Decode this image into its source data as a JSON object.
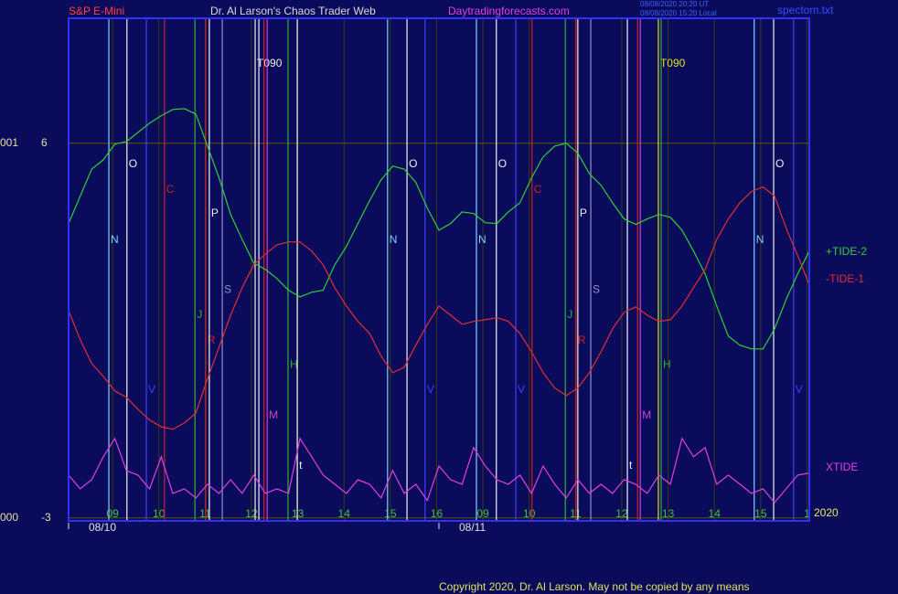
{
  "chart_data": {
    "type": "line",
    "title": "Dr. Al Larson's Chaos Trader Web",
    "instrument": "S&P E-Mini",
    "site": "Daytradingforecasts.com",
    "timestamps": [
      "08/08/2020 20:20 UT",
      "08/08/2020 15:20 Local"
    ],
    "file": "spectom.txt",
    "year": "2020",
    "copyright": "Copyright 2020, Dr. Al Larson. May not be copied by any means",
    "xlim": [
      0,
      16
    ],
    "ylim": [
      -3.07,
      9.0
    ],
    "yticks": [
      6,
      -3
    ],
    "ytick_prefixes": [
      "001",
      "000"
    ],
    "grid": true,
    "xticks": [
      {
        "value": 0.95,
        "label": "09"
      },
      {
        "value": 1.95,
        "label": "10"
      },
      {
        "value": 2.95,
        "label": "11"
      },
      {
        "value": 3.95,
        "label": "12"
      },
      {
        "value": 4.95,
        "label": "13"
      },
      {
        "value": 5.95,
        "label": "14"
      },
      {
        "value": 6.95,
        "label": "15"
      },
      {
        "value": 7.95,
        "label": "16"
      },
      {
        "value": 8.95,
        "label": "09"
      },
      {
        "value": 9.95,
        "label": "10"
      },
      {
        "value": 10.95,
        "label": "11"
      },
      {
        "value": 11.95,
        "label": "12"
      },
      {
        "value": 12.95,
        "label": "13"
      },
      {
        "value": 13.95,
        "label": "14"
      },
      {
        "value": 14.95,
        "label": "15"
      },
      {
        "value": 15.95,
        "label": "1"
      }
    ],
    "date_ticks": [
      {
        "value": 0,
        "label": "08/10"
      },
      {
        "value": 8,
        "label": "08/11"
      }
    ],
    "x": [
      0,
      0.25,
      0.5,
      0.75,
      1,
      1.25,
      1.5,
      1.75,
      2,
      2.25,
      2.5,
      2.75,
      3,
      3.25,
      3.5,
      3.75,
      4,
      4.25,
      4.5,
      4.75,
      5,
      5.25,
      5.5,
      5.75,
      6,
      6.25,
      6.5,
      6.75,
      7,
      7.25,
      7.5,
      7.75,
      8,
      8.25,
      8.5,
      8.75,
      9,
      9.25,
      9.5,
      9.75,
      10,
      10.25,
      10.5,
      10.75,
      11,
      11.25,
      11.5,
      11.75,
      12,
      12.25,
      12.5,
      12.75,
      13,
      13.25,
      13.5,
      13.75,
      14,
      14.25,
      14.5,
      14.75,
      15,
      15.25,
      15.5,
      15.75,
      16
    ],
    "series": [
      {
        "name": "+TIDE-2",
        "color": "#30d030",
        "values": [
          4.07,
          4.73,
          5.38,
          5.6,
          5.98,
          6.04,
          6.26,
          6.48,
          6.66,
          6.81,
          6.83,
          6.7,
          5.93,
          5.17,
          4.29,
          3.69,
          3.12,
          2.97,
          2.75,
          2.47,
          2.31,
          2.42,
          2.47,
          3.08,
          3.52,
          4.07,
          4.62,
          5.12,
          5.45,
          5.38,
          5.06,
          4.44,
          3.91,
          4.07,
          4.35,
          4.31,
          4.09,
          4.07,
          4.35,
          4.57,
          5.17,
          5.67,
          5.93,
          6.0,
          5.76,
          5.27,
          4.99,
          4.57,
          4.18,
          4.05,
          4.18,
          4.29,
          4.22,
          3.91,
          3.41,
          2.86,
          2.09,
          1.37,
          1.15,
          1.06,
          1.06,
          1.54,
          2.25,
          2.86,
          3.41
        ]
      },
      {
        "name": "-TIDE-1",
        "color": "#e03030",
        "values": [
          1.98,
          1.28,
          0.71,
          0.4,
          0.05,
          -0.1,
          -0.39,
          -0.65,
          -0.81,
          -0.87,
          -0.72,
          -0.48,
          0.34,
          1.1,
          1.87,
          2.53,
          3.08,
          3.34,
          3.56,
          3.63,
          3.63,
          3.41,
          3.08,
          2.53,
          2.09,
          1.72,
          1.43,
          0.89,
          0.49,
          0.62,
          1.15,
          1.65,
          2.09,
          1.87,
          1.65,
          1.72,
          1.76,
          1.81,
          1.72,
          1.43,
          0.99,
          0.49,
          0.12,
          -0.06,
          0.12,
          0.49,
          0.99,
          1.54,
          1.94,
          2.07,
          1.87,
          1.72,
          1.76,
          2.09,
          2.53,
          2.97,
          3.69,
          4.18,
          4.57,
          4.84,
          4.95,
          4.73,
          3.96,
          3.3,
          2.6
        ]
      },
      {
        "name": "XTIDE",
        "color": "#e040e0",
        "values": [
          -1.97,
          -2.3,
          -2.08,
          -1.53,
          -1.09,
          -1.86,
          -1.97,
          -2.3,
          -1.53,
          -2.41,
          -2.3,
          -2.52,
          -2.19,
          -2.41,
          -2.08,
          -2.41,
          -1.97,
          -2.41,
          -2.3,
          -2.41,
          -1.09,
          -1.53,
          -1.97,
          -2.19,
          -2.41,
          -2.08,
          -2.19,
          -2.52,
          -1.86,
          -2.41,
          -2.19,
          -2.58,
          -1.75,
          -2.08,
          -2.19,
          -1.31,
          -1.75,
          -2.08,
          -2.19,
          -1.97,
          -2.41,
          -1.75,
          -2.19,
          -2.52,
          -2.08,
          -2.41,
          -2.19,
          -2.41,
          -2.08,
          -2.19,
          -2.41,
          -1.97,
          -2.19,
          -1.09,
          -1.53,
          -1.31,
          -2.19,
          -1.97,
          -2.19,
          -2.41,
          -2.3,
          -2.63,
          -2.3,
          -1.97,
          -1.92
        ]
      }
    ],
    "markers": [
      {
        "x": 0.87,
        "color": "#80d0ff",
        "label": "N",
        "y": 3.67
      },
      {
        "x": 1.26,
        "color": "#f0f0f0",
        "label": "O",
        "y": 5.49
      },
      {
        "x": 1.68,
        "color": "#4040ff",
        "label": "V",
        "y": 0.07
      },
      {
        "x": 2.07,
        "color": "#d02020",
        "label": "C",
        "y": 4.88
      },
      {
        "x": 2.73,
        "color": "#30b030",
        "label": "J",
        "y": 1.87
      },
      {
        "x": 2.96,
        "color": "#d02020",
        "label": "R",
        "y": 1.26
      },
      {
        "x": 3.04,
        "color": "#f0f0f0",
        "label": "P",
        "y": 4.31
      },
      {
        "x": 3.32,
        "color": "#9090d0",
        "label": "S",
        "y": 2.47
      },
      {
        "x": 4.03,
        "color": "#f0f0f0",
        "label": "T090",
        "y": 7.91
      },
      {
        "x": 4.11,
        "color": "#f0f0f0"
      },
      {
        "x": 4.22,
        "color": "#d02020"
      },
      {
        "x": 4.29,
        "color": "#d040d0",
        "label": "M",
        "y": -0.54
      },
      {
        "x": 4.74,
        "color": "#30b030",
        "label": "H",
        "y": 0.67
      },
      {
        "x": 4.94,
        "color": "#f0f0f0",
        "label": "t",
        "y": -1.75
      },
      {
        "x": 6.89,
        "color": "#80d0ff",
        "label": "N",
        "y": 3.67
      },
      {
        "x": 7.31,
        "color": "#f0f0f0",
        "label": "O",
        "y": 5.49
      },
      {
        "x": 7.7,
        "color": "#4040ff",
        "label": "V",
        "y": 0.07
      },
      {
        "x": 8.81,
        "color": "#80d0ff",
        "label": "N",
        "y": 3.67
      },
      {
        "x": 9.24,
        "color": "#f0f0f0",
        "label": "O",
        "y": 5.49
      },
      {
        "x": 9.66,
        "color": "#4040ff",
        "label": "V",
        "y": 0.07
      },
      {
        "x": 10.01,
        "color": "#d02020",
        "label": "C",
        "y": 4.88
      },
      {
        "x": 10.73,
        "color": "#30b030",
        "label": "J",
        "y": 1.87
      },
      {
        "x": 10.96,
        "color": "#d02020",
        "label": "R",
        "y": 1.26
      },
      {
        "x": 11.0,
        "color": "#f0f0f0",
        "label": "P",
        "y": 4.31
      },
      {
        "x": 11.28,
        "color": "#9090d0",
        "label": "S",
        "y": 2.47
      },
      {
        "x": 12.07,
        "color": "#f0f0f0",
        "label": "t",
        "y": -1.75
      },
      {
        "x": 12.29,
        "color": "#d02020"
      },
      {
        "x": 12.35,
        "color": "#d040d0",
        "label": "M",
        "y": -0.54
      },
      {
        "x": 12.74,
        "color": "#e0e020",
        "label": "T090",
        "y": 7.91
      },
      {
        "x": 12.8,
        "color": "#30b030",
        "label": "H",
        "y": 0.67
      },
      {
        "x": 14.81,
        "color": "#80d0ff",
        "label": "N",
        "y": 3.67
      },
      {
        "x": 15.23,
        "color": "#f0f0f0",
        "label": "O",
        "y": 5.49
      },
      {
        "x": 15.66,
        "color": "#4040ff",
        "label": "V",
        "y": 0.07
      }
    ]
  }
}
